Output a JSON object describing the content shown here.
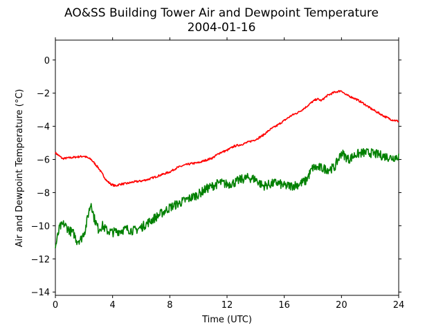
{
  "chart_data": {
    "type": "line",
    "title": "AO&SS Building Tower Air and Dewpoint Temperature",
    "subtitle": "2004-01-16",
    "xlabel": "Time (UTC)",
    "ylabel": "Air and Dewpoint Temperature (°C)",
    "xlim": [
      0,
      24
    ],
    "ylim": [
      -14.2,
      1.2
    ],
    "xticks": [
      0,
      4,
      8,
      12,
      16,
      20,
      24
    ],
    "yticks": [
      -14,
      -12,
      -10,
      -8,
      -6,
      -4,
      -2,
      0
    ],
    "grid": false,
    "legend": "none",
    "series": [
      {
        "color": "#ff0000",
        "x": [
          0,
          0.5,
          1,
          1.5,
          2,
          2.5,
          3,
          3.3,
          3.6,
          3.9,
          4.2,
          4.5,
          5,
          5.5,
          6,
          6.5,
          7,
          7.5,
          8,
          8.5,
          9,
          9.5,
          10,
          10.5,
          11,
          11.5,
          12,
          12.5,
          13,
          13.5,
          14,
          14.5,
          15,
          15.5,
          16,
          16.5,
          17,
          17.5,
          18,
          18.3,
          18.6,
          19,
          19.5,
          20,
          20.3,
          20.6,
          21,
          21.5,
          22,
          22.5,
          23,
          23.5,
          24
        ],
        "values": [
          -5.6,
          -5.95,
          -5.9,
          -5.85,
          -5.8,
          -6.0,
          -6.5,
          -6.9,
          -7.3,
          -7.5,
          -7.6,
          -7.5,
          -7.45,
          -7.35,
          -7.3,
          -7.2,
          -7.05,
          -6.9,
          -6.75,
          -6.5,
          -6.35,
          -6.25,
          -6.2,
          -6.05,
          -5.9,
          -5.6,
          -5.45,
          -5.2,
          -5.1,
          -4.95,
          -4.8,
          -4.55,
          -4.2,
          -3.95,
          -3.65,
          -3.35,
          -3.15,
          -2.85,
          -2.5,
          -2.35,
          -2.45,
          -2.15,
          -1.95,
          -1.85,
          -2.1,
          -2.2,
          -2.35,
          -2.6,
          -2.9,
          -3.15,
          -3.4,
          -3.6,
          -3.7
        ],
        "noise": 0.06
      },
      {
        "color": "#008000",
        "x": [
          0,
          0.3,
          0.6,
          1,
          1.3,
          1.5,
          1.8,
          2.1,
          2.3,
          2.5,
          2.7,
          3,
          3.3,
          3.6,
          4,
          4.5,
          5,
          5.5,
          6,
          6.5,
          7,
          7.5,
          8,
          8.5,
          9,
          9.5,
          10,
          10.5,
          11,
          11.5,
          12,
          12.5,
          13,
          13.5,
          14,
          14.5,
          15,
          15.5,
          16,
          16.5,
          17,
          17.5,
          18,
          18.5,
          19,
          19.5,
          20,
          20.5,
          21,
          21.5,
          22,
          22.5,
          23,
          23.5,
          24
        ],
        "values": [
          -11.3,
          -10.1,
          -9.9,
          -10.3,
          -10.5,
          -10.9,
          -10.8,
          -10.2,
          -9.3,
          -8.6,
          -9.5,
          -10.2,
          -10.0,
          -10.3,
          -10.4,
          -10.3,
          -10.2,
          -10.3,
          -10.1,
          -9.8,
          -9.5,
          -9.2,
          -8.9,
          -8.7,
          -8.5,
          -8.3,
          -8.1,
          -7.8,
          -7.6,
          -7.4,
          -7.5,
          -7.4,
          -7.2,
          -7.1,
          -7.2,
          -7.6,
          -7.5,
          -7.4,
          -7.6,
          -7.6,
          -7.5,
          -7.3,
          -6.5,
          -6.5,
          -6.6,
          -6.5,
          -5.6,
          -6.0,
          -5.7,
          -5.6,
          -5.6,
          -5.7,
          -5.8,
          -5.9,
          -5.8
        ],
        "noise": 0.28
      }
    ]
  }
}
